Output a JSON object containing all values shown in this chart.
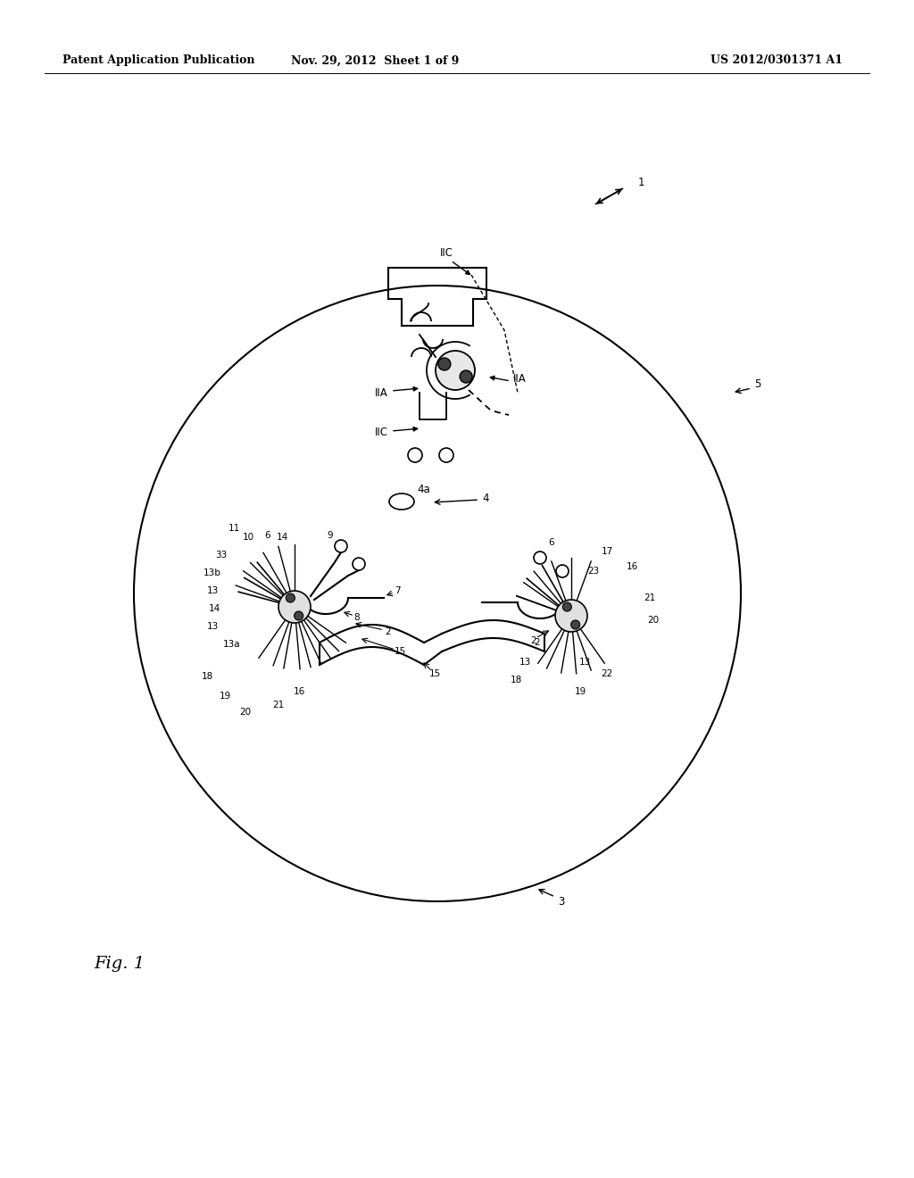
{
  "background_color": "#ffffff",
  "header_left": "Patent Application Publication",
  "header_center": "Nov. 29, 2012  Sheet 1 of 9",
  "header_right": "US 2012/0301371 A1",
  "fig_label": "Fig. 1",
  "header_fontsize": 9,
  "label_fontsize": 8.5
}
